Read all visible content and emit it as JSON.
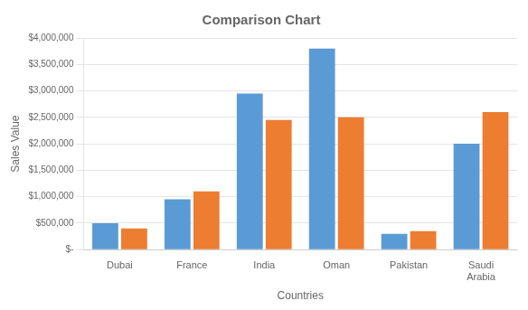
{
  "chart_data": {
    "type": "bar",
    "title": "Comparison Chart",
    "xlabel": "Countries",
    "ylabel": "Sales Value",
    "categories": [
      "Dubai",
      "France",
      "India",
      "Oman",
      "Pakistan",
      "Saudi\nArabia"
    ],
    "series": [
      {
        "color": "#5B9BD5",
        "values": [
          500000,
          950000,
          2950000,
          3800000,
          300000,
          2000000
        ]
      },
      {
        "color": "#ED7D31",
        "values": [
          400000,
          1100000,
          2450000,
          2500000,
          350000,
          2600000
        ]
      }
    ],
    "ylim": [
      0,
      4000000
    ],
    "yticks": [
      {
        "value": 0,
        "label": "$-"
      },
      {
        "value": 500000,
        "label": "$500,000"
      },
      {
        "value": 1000000,
        "label": "$1,000,000"
      },
      {
        "value": 1500000,
        "label": "$1,500,000"
      },
      {
        "value": 2000000,
        "label": "$2,000,000"
      },
      {
        "value": 2500000,
        "label": "$2,500,000"
      },
      {
        "value": 3000000,
        "label": "$3,000,000"
      },
      {
        "value": 3500000,
        "label": "$3,500,000"
      },
      {
        "value": 4000000,
        "label": "$4,000,000"
      }
    ],
    "grid": true
  }
}
